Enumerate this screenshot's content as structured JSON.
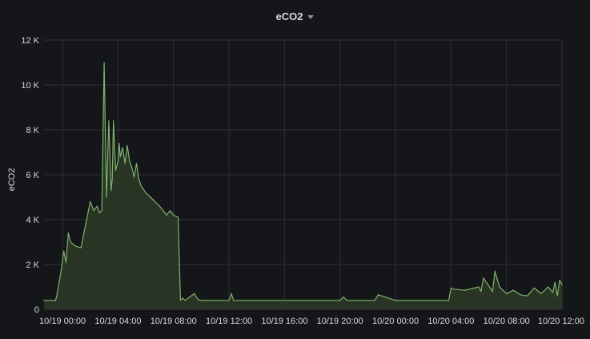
{
  "panel": {
    "title": "eCO2"
  },
  "colors": {
    "background": "#141619",
    "grid": "#2f3136",
    "axis_text": "#d8d9da",
    "series_line": "#7eb26d",
    "series_fill": "#2c3b27"
  },
  "chart_data": {
    "type": "area",
    "title": "eCO2",
    "ylabel": "eCO2",
    "xlabel": "",
    "ylim": [
      0,
      12000
    ],
    "yticks": [
      0,
      2000,
      4000,
      6000,
      8000,
      10000,
      12000
    ],
    "ytick_labels": [
      "0",
      "2 K",
      "4 K",
      "6 K",
      "8 K",
      "10 K",
      "12 K"
    ],
    "xlim": [
      "10/18 22:40",
      "10/20 12:00"
    ],
    "xticks": [
      "10/19 00:00",
      "10/19 04:00",
      "10/19 08:00",
      "10/19 12:00",
      "10/19 16:00",
      "10/19 20:00",
      "10/20 00:00",
      "10/20 04:00",
      "10/20 08:00",
      "10/20 12:00"
    ],
    "grid": true,
    "legend": "none",
    "series": [
      {
        "x": [
          "10/18 22:40",
          "10/18 23:30",
          "10/18 23:35",
          "10/18 23:45",
          "10/18 23:55",
          "10/19 00:05",
          "10/19 00:15",
          "10/19 00:25",
          "10/19 00:35",
          "10/19 00:45",
          "10/19 01:00",
          "10/19 01:20",
          "10/19 01:40",
          "10/19 02:00",
          "10/19 02:15",
          "10/19 02:30",
          "10/19 02:40",
          "10/19 02:50",
          "10/19 03:00",
          "10/19 03:10",
          "10/19 03:20",
          "10/19 03:30",
          "10/19 03:35",
          "10/19 03:40",
          "10/19 03:50",
          "10/19 04:00",
          "10/19 04:05",
          "10/19 04:10",
          "10/19 04:20",
          "10/19 04:30",
          "10/19 04:40",
          "10/19 04:50",
          "10/19 05:00",
          "10/19 05:10",
          "10/19 05:20",
          "10/19 05:30",
          "10/19 05:40",
          "10/19 06:00",
          "10/19 06:30",
          "10/19 07:00",
          "10/19 07:30",
          "10/19 07:45",
          "10/19 08:00",
          "10/19 08:20",
          "10/19 08:30",
          "10/19 08:40",
          "10/19 08:50",
          "10/19 09:30",
          "10/19 09:45",
          "10/19 10:00",
          "10/19 12:00",
          "10/19 12:10",
          "10/19 12:20",
          "10/19 20:00",
          "10/19 20:15",
          "10/19 20:30",
          "10/19 22:30",
          "10/19 22:45",
          "10/20 00:00",
          "10/20 03:50",
          "10/20 04:00",
          "10/20 04:10",
          "10/20 05:00",
          "10/20 06:00",
          "10/20 06:10",
          "10/20 06:20",
          "10/20 07:00",
          "10/20 07:10",
          "10/20 07:30",
          "10/20 08:00",
          "10/20 08:30",
          "10/20 09:00",
          "10/20 09:30",
          "10/20 10:00",
          "10/20 10:30",
          "10/20 11:00",
          "10/20 11:20",
          "10/20 11:30",
          "10/20 11:40",
          "10/20 11:50",
          "10/20 12:00"
        ],
        "values": [
          400,
          400,
          600,
          1200,
          1800,
          2600,
          2100,
          3400,
          3000,
          2900,
          2800,
          2750,
          3800,
          4800,
          4400,
          4600,
          4300,
          4400,
          11000,
          5000,
          8400,
          5300,
          5800,
          8400,
          6200,
          6600,
          7400,
          6800,
          7200,
          6500,
          7300,
          6600,
          6300,
          5900,
          6500,
          5800,
          5500,
          5200,
          4900,
          4600,
          4200,
          4400,
          4200,
          4100,
          400,
          500,
          400,
          700,
          450,
          400,
          400,
          700,
          400,
          400,
          550,
          400,
          400,
          650,
          400,
          400,
          950,
          900,
          850,
          1000,
          800,
          1400,
          800,
          1700,
          1000,
          700,
          850,
          650,
          600,
          950,
          700,
          1000,
          750,
          1200,
          600,
          1300,
          1100
        ]
      }
    ]
  }
}
